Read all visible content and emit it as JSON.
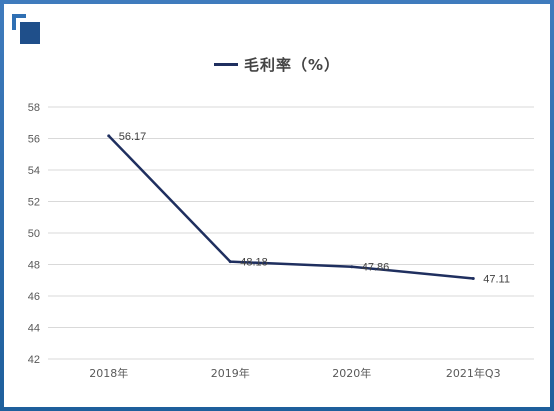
{
  "colors": {
    "line": "#1f2f5f",
    "grid": "#d9d9d9",
    "axis_text": "#595959",
    "logo_light": "#2f6fb3",
    "logo_dark": "#1f4f8a"
  },
  "logo": {
    "icon": "brand-logo-icon"
  },
  "chart_data": {
    "type": "line",
    "title": "",
    "xlabel": "",
    "ylabel": "",
    "legend_position": "top-center",
    "grid": true,
    "categories": [
      "2018年",
      "2019年",
      "2020年",
      "2021年Q3"
    ],
    "ylim": [
      42,
      58
    ],
    "yticks": [
      42,
      44,
      46,
      48,
      50,
      52,
      54,
      56,
      58
    ],
    "series": [
      {
        "name": "毛利率（%）",
        "values": [
          56.17,
          48.18,
          47.86,
          47.11
        ],
        "labels": [
          "56.17",
          "48.18",
          "47.86",
          "47.11"
        ]
      }
    ]
  }
}
